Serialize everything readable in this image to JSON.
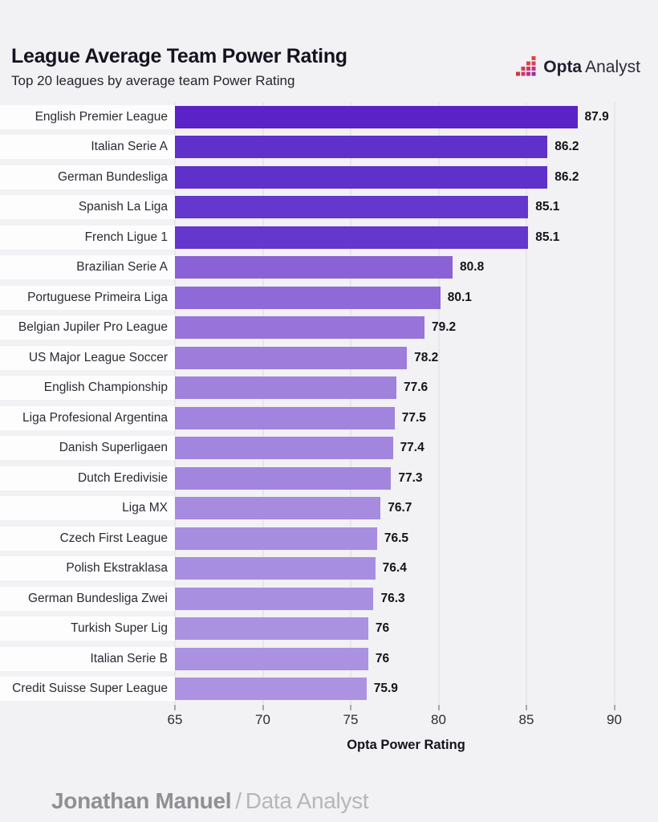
{
  "header": {
    "title": "League Average Team Power Rating",
    "subtitle": "Top 20 leagues by average team Power Rating",
    "logo_bold": "Opta",
    "logo_regular": "Analyst"
  },
  "chart_data": {
    "type": "bar",
    "orientation": "horizontal",
    "title": "League Average Team Power Rating",
    "subtitle": "Top 20 leagues by average team Power Rating",
    "xlabel": "Opta Power Rating",
    "xlim": [
      65,
      91.3
    ],
    "xticks": [
      65,
      70,
      75,
      80,
      85,
      90
    ],
    "grid": "vertical",
    "categories": [
      "English Premier League",
      "Italian Serie A",
      "German Bundesliga",
      "Spanish La Liga",
      "French Ligue 1",
      "Brazilian Serie A",
      "Portuguese Primeira Liga",
      "Belgian Jupiler Pro League",
      "US Major League Soccer",
      "English Championship",
      "Liga Profesional Argentina",
      "Danish Superligaen",
      "Dutch Eredivisie",
      "Liga MX",
      "Czech First League",
      "Polish Ekstraklasa",
      "German Bundesliga Zwei",
      "Turkish Super Lig",
      "Italian Serie B",
      "Credit Suisse Super League"
    ],
    "values": [
      87.9,
      86.2,
      86.2,
      85.1,
      85.1,
      80.8,
      80.1,
      79.2,
      78.2,
      77.6,
      77.5,
      77.4,
      77.3,
      76.7,
      76.5,
      76.4,
      76.3,
      76,
      76,
      75.9
    ],
    "value_labels": [
      "87.9",
      "86.2",
      "86.2",
      "85.1",
      "85.1",
      "80.8",
      "80.1",
      "79.2",
      "78.2",
      "77.6",
      "77.5",
      "77.4",
      "77.3",
      "76.7",
      "76.5",
      "76.4",
      "76.3",
      "76",
      "76",
      "75.9"
    ],
    "bar_colors": [
      "#5a22c7",
      "#6030ca",
      "#6030ca",
      "#6537cd",
      "#6537cd",
      "#8a62d6",
      "#9069d8",
      "#9773da",
      "#9d7cdc",
      "#a082dd",
      "#a184dd",
      "#a285de",
      "#a286de",
      "#a68bdf",
      "#a78de0",
      "#a88ee0",
      "#a88fe0",
      "#aa92e1",
      "#aa92e1",
      "#ab93e2"
    ]
  },
  "footer": {
    "author": "Jonathan Manuel",
    "separator": "/",
    "role": "Data Analyst"
  },
  "colors": {
    "background": "#f2f1f4",
    "row_band": "#fdfdfe",
    "gridline": "#e7e6ea",
    "title_text": "#15131f",
    "bar_darkest": "#5a22c7",
    "bar_lightest": "#ab93e2",
    "logo_red": "#e0463c",
    "logo_magenta": "#cf3768",
    "logo_purple": "#9031ae"
  }
}
